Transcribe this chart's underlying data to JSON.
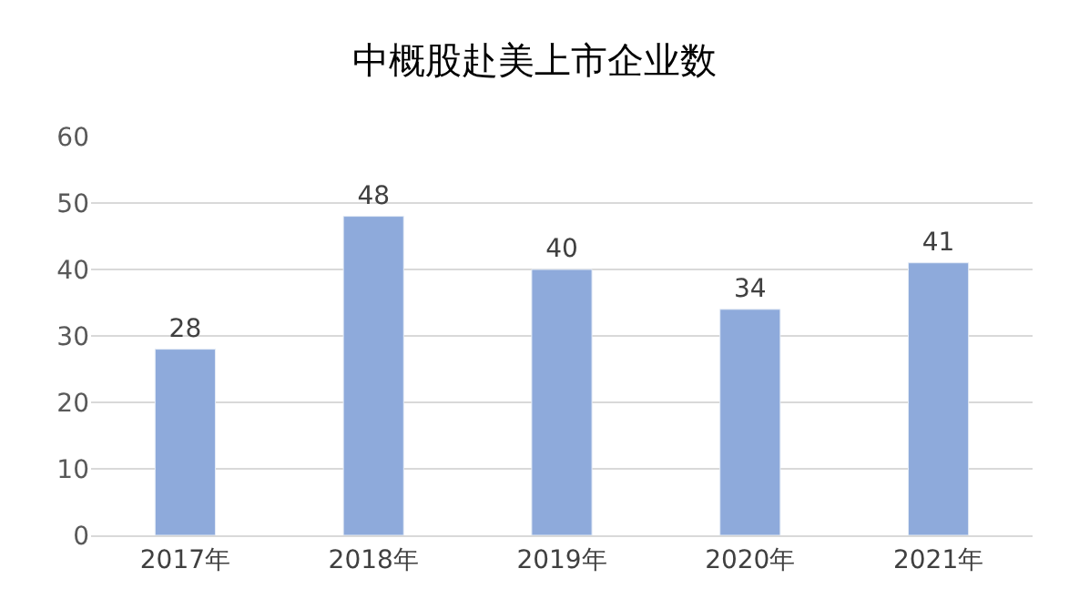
{
  "chart_data": {
    "type": "bar",
    "title": "中概股赴美上市企业数",
    "categories": [
      "2017年",
      "2018年",
      "2019年",
      "2020年",
      "2021年"
    ],
    "values": [
      28,
      48,
      40,
      34,
      41
    ],
    "color": "#8eaadb",
    "ylim": [
      0,
      60
    ],
    "yticks": [
      0,
      10,
      20,
      30,
      40,
      50,
      60
    ],
    "grid": "y",
    "data_labels": true
  }
}
